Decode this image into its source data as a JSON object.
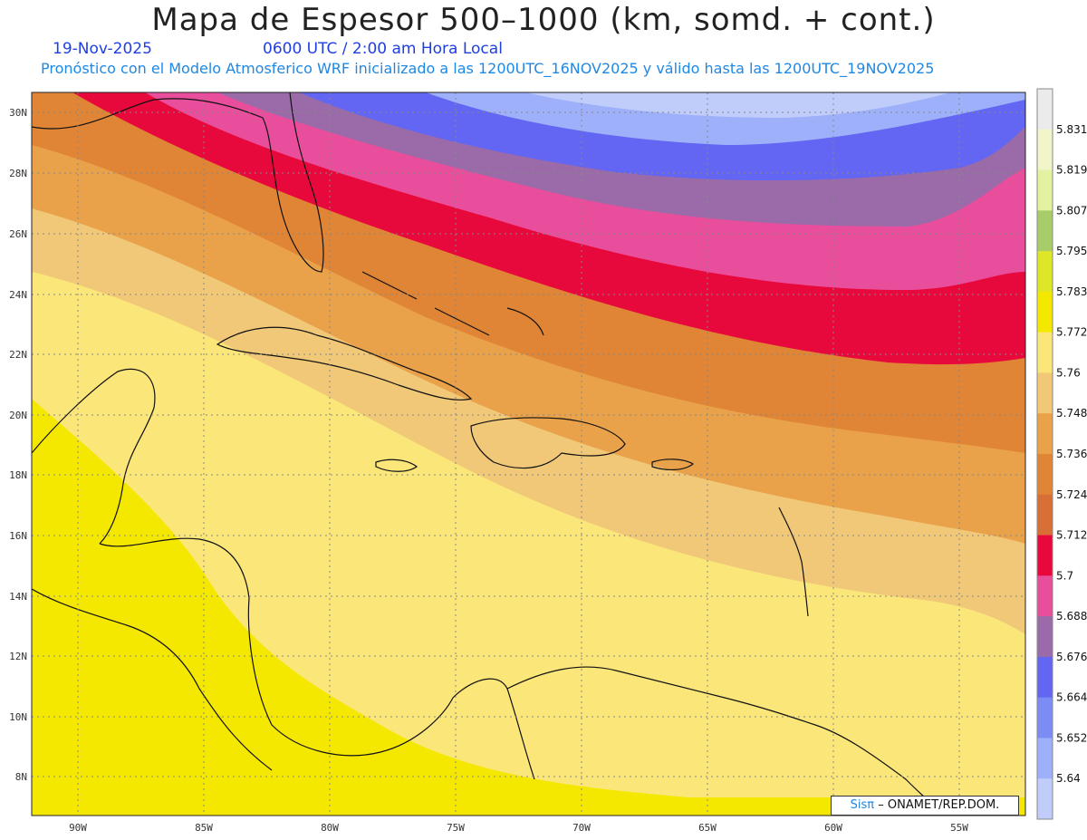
{
  "header": {
    "title": "Mapa de Espesor 500–1000 (km, somd. + cont.)",
    "date": "19-Nov-2025",
    "time": "0600 UTC / 2:00 am Hora Local",
    "description": "Pronóstico con el Modelo Atmosferico WRF inicializado a las 1200UTC_16NOV2025 y válido hasta las  1200UTC_19NOV2025"
  },
  "axes": {
    "lat_labels": [
      "30N",
      "28N",
      "26N",
      "24N",
      "22N",
      "20N",
      "18N",
      "16N",
      "14N",
      "12N",
      "10N",
      "8N"
    ],
    "lon_labels": [
      "90W",
      "85W",
      "80W",
      "75W",
      "70W",
      "65W",
      "60W",
      "55W"
    ]
  },
  "colorbar": {
    "labels": [
      "5.831",
      "5.819",
      "5.807",
      "5.795",
      "5.783",
      "5.772",
      "5.76",
      "5.748",
      "5.736",
      "5.724",
      "5.712",
      "5.7",
      "5.688",
      "5.676",
      "5.664",
      "5.652",
      "5.64"
    ],
    "colors": [
      "#ebebeb",
      "#f2f5c8",
      "#e2f2a0",
      "#a9cc6a",
      "#dde628",
      "#f5e800",
      "#fbe67a",
      "#f0c878",
      "#e9a24a",
      "#e08535",
      "#d86f36",
      "#e8093c",
      "#e84e9c",
      "#9a6ba8",
      "#6266f2",
      "#7b8cf5",
      "#9db0f9",
      "#c0cdfb"
    ]
  },
  "credit": {
    "sis": "Sisπ",
    "text": "– ONAMET/REP.DOM."
  }
}
